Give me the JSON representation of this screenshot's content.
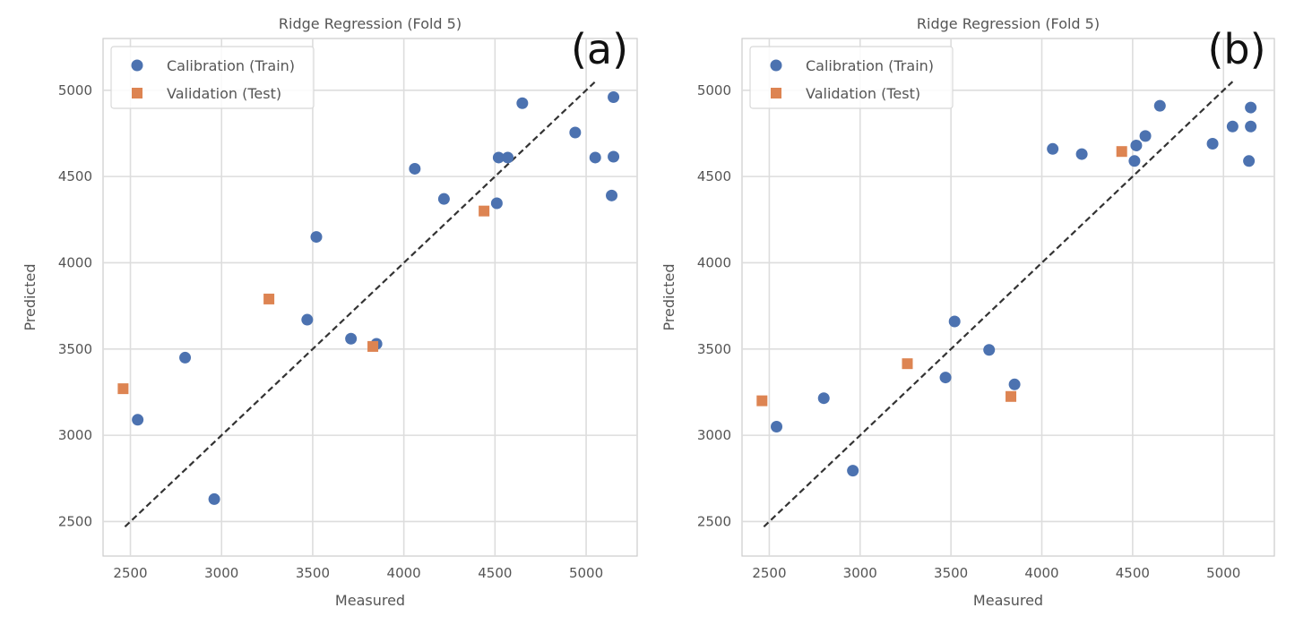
{
  "colors": {
    "train": "#4c72b0",
    "test": "#dd8452",
    "grid": "#dddddd",
    "frame": "#cccccc",
    "text": "#555555",
    "ideal_line": "#333333"
  },
  "chart_data": [
    {
      "panel": "a",
      "panel_label": "(a)",
      "type": "scatter",
      "title": "Ridge Regression (Fold 5)",
      "xlabel": "Measured",
      "ylabel": "Predicted",
      "xlim": [
        2350,
        5280
      ],
      "ylim": [
        2300,
        5300
      ],
      "xticks": [
        2500,
        3000,
        3500,
        4000,
        4500,
        5000
      ],
      "yticks": [
        2500,
        3000,
        3500,
        4000,
        4500,
        5000
      ],
      "grid": true,
      "legend_position": "top-left",
      "ideal_line": {
        "from": 2470,
        "to": 5050
      },
      "series": [
        {
          "name": "Calibration (Train)",
          "marker": "circle",
          "x": [
            2540,
            2800,
            2960,
            3470,
            3520,
            3710,
            3850,
            4060,
            4220,
            4510,
            4520,
            4570,
            4650,
            4940,
            5050,
            5140,
            5150,
            5150
          ],
          "y": [
            3090,
            3450,
            2630,
            3670,
            4150,
            3560,
            3530,
            4545,
            4370,
            4345,
            4610,
            4610,
            4925,
            4755,
            4610,
            4390,
            4615,
            4960
          ]
        },
        {
          "name": "Validation (Test)",
          "marker": "square",
          "x": [
            2460,
            3260,
            3830,
            4440
          ],
          "y": [
            3270,
            3790,
            3515,
            4300
          ]
        }
      ]
    },
    {
      "panel": "b",
      "panel_label": "(b)",
      "type": "scatter",
      "title": "Ridge Regression (Fold 5)",
      "xlabel": "Measured",
      "ylabel": "Predicted",
      "xlim": [
        2350,
        5280
      ],
      "ylim": [
        2300,
        5300
      ],
      "xticks": [
        2500,
        3000,
        3500,
        4000,
        4500,
        5000
      ],
      "yticks": [
        2500,
        3000,
        3500,
        4000,
        4500,
        5000
      ],
      "grid": true,
      "legend_position": "top-left",
      "ideal_line": {
        "from": 2470,
        "to": 5050
      },
      "series": [
        {
          "name": "Calibration (Train)",
          "marker": "circle",
          "x": [
            2540,
            2800,
            2960,
            3470,
            3520,
            3710,
            3850,
            4060,
            4220,
            4510,
            4520,
            4570,
            4650,
            4940,
            5050,
            5140,
            5150,
            5150
          ],
          "y": [
            3050,
            3215,
            2795,
            3335,
            3660,
            3495,
            3295,
            4660,
            4630,
            4590,
            4680,
            4735,
            4910,
            4690,
            4790,
            4590,
            4790,
            4900
          ]
        },
        {
          "name": "Validation (Test)",
          "marker": "square",
          "x": [
            2460,
            3260,
            3830,
            4440
          ],
          "y": [
            3200,
            3415,
            3225,
            4645
          ]
        }
      ]
    }
  ]
}
